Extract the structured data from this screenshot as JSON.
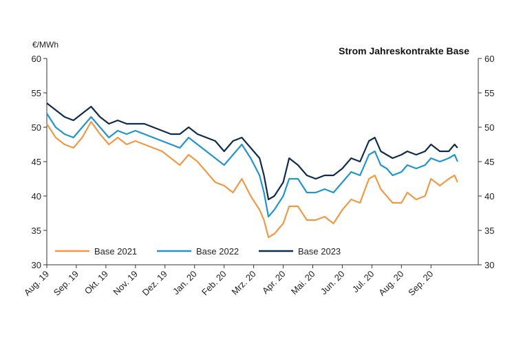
{
  "chart_data": {
    "type": "line",
    "title": "Strom Jahreskontrakte Base",
    "unit_label": "€/MWh",
    "ylim": [
      30,
      60
    ],
    "yticks": [
      30,
      35,
      40,
      45,
      50,
      55,
      60
    ],
    "xlim": [
      0,
      14.6
    ],
    "xticks": [
      {
        "x": 0,
        "label": "Aug. 19"
      },
      {
        "x": 1,
        "label": "Sep. 19"
      },
      {
        "x": 2,
        "label": "Okt. 19"
      },
      {
        "x": 3,
        "label": "Nov. 19"
      },
      {
        "x": 4,
        "label": "Dez. 19"
      },
      {
        "x": 5,
        "label": "Jan. 20"
      },
      {
        "x": 6,
        "label": "Feb. 20"
      },
      {
        "x": 7,
        "label": "Mrz. 20"
      },
      {
        "x": 8,
        "label": "Apr. 20"
      },
      {
        "x": 9,
        "label": "Mai. 20"
      },
      {
        "x": 10,
        "label": "Jun. 20"
      },
      {
        "x": 11,
        "label": "Jul. 20"
      },
      {
        "x": 12,
        "label": "Aug. 20"
      },
      {
        "x": 13,
        "label": "Sep. 20"
      }
    ],
    "grid": false,
    "legend_position": "bottom-left",
    "series": [
      {
        "name": "Base 2021",
        "color": "#f29845",
        "x": [
          0,
          0.3,
          0.6,
          0.9,
          1.2,
          1.5,
          1.8,
          2.1,
          2.4,
          2.7,
          3,
          3.3,
          3.6,
          3.9,
          4.2,
          4.5,
          4.8,
          5.1,
          5.4,
          5.7,
          6,
          6.3,
          6.6,
          6.9,
          7.2,
          7.35,
          7.5,
          7.7,
          8,
          8.2,
          8.5,
          8.8,
          9.1,
          9.4,
          9.7,
          10,
          10.3,
          10.6,
          10.9,
          11.1,
          11.3,
          11.5,
          11.7,
          12,
          12.2,
          12.5,
          12.8,
          13,
          13.3,
          13.6,
          13.8,
          13.9
        ],
        "values": [
          50.5,
          48.5,
          47.5,
          47.0,
          48.5,
          50.8,
          49.0,
          47.5,
          48.5,
          47.5,
          48.0,
          47.5,
          47.0,
          46.5,
          45.5,
          44.5,
          46.0,
          45.0,
          43.5,
          42.0,
          41.5,
          40.5,
          42.5,
          40.0,
          38.0,
          36.5,
          34.0,
          34.5,
          36.0,
          38.5,
          38.5,
          36.5,
          36.5,
          37.0,
          36.0,
          38.0,
          39.5,
          39.0,
          42.5,
          43.0,
          41.0,
          40.0,
          39.0,
          39.0,
          40.5,
          39.5,
          40.0,
          42.5,
          41.5,
          42.5,
          43.0,
          42.0
        ]
      },
      {
        "name": "Base 2022",
        "color": "#1f94cf",
        "x": [
          0,
          0.3,
          0.6,
          0.9,
          1.2,
          1.5,
          1.8,
          2.1,
          2.4,
          2.7,
          3,
          3.3,
          3.6,
          3.9,
          4.2,
          4.5,
          4.8,
          5.1,
          5.4,
          5.7,
          6,
          6.3,
          6.6,
          6.9,
          7.2,
          7.35,
          7.5,
          7.7,
          8,
          8.2,
          8.5,
          8.8,
          9.1,
          9.4,
          9.7,
          10,
          10.3,
          10.6,
          10.9,
          11.1,
          11.3,
          11.5,
          11.7,
          12,
          12.2,
          12.5,
          12.8,
          13,
          13.3,
          13.6,
          13.8,
          13.9
        ],
        "values": [
          52.0,
          50.0,
          49.0,
          48.5,
          50.0,
          51.5,
          50.0,
          48.5,
          49.5,
          49.0,
          49.5,
          49.0,
          48.5,
          48.0,
          47.5,
          47.0,
          48.5,
          47.5,
          46.5,
          45.5,
          44.5,
          46.0,
          47.5,
          45.5,
          43.0,
          40.5,
          37.0,
          38.0,
          40.0,
          42.5,
          42.5,
          40.5,
          40.5,
          41.0,
          40.5,
          42.0,
          43.5,
          43.0,
          46.0,
          46.5,
          44.5,
          44.0,
          43.0,
          43.5,
          44.5,
          44.0,
          44.5,
          45.5,
          45.0,
          45.5,
          46.0,
          45.0
        ]
      },
      {
        "name": "Base 2023",
        "color": "#0d2a4f",
        "x": [
          0,
          0.3,
          0.6,
          0.9,
          1.2,
          1.5,
          1.8,
          2.1,
          2.4,
          2.7,
          3,
          3.3,
          3.6,
          3.9,
          4.2,
          4.5,
          4.8,
          5.1,
          5.4,
          5.7,
          6,
          6.3,
          6.6,
          6.9,
          7.2,
          7.35,
          7.5,
          7.7,
          8,
          8.2,
          8.5,
          8.8,
          9.1,
          9.4,
          9.7,
          10,
          10.3,
          10.6,
          10.9,
          11.1,
          11.3,
          11.5,
          11.7,
          12,
          12.2,
          12.5,
          12.8,
          13,
          13.3,
          13.6,
          13.8,
          13.9
        ],
        "values": [
          53.5,
          52.5,
          51.5,
          51.0,
          52.0,
          53.0,
          51.5,
          50.5,
          51.0,
          50.5,
          50.5,
          50.5,
          50.0,
          49.5,
          49.0,
          49.0,
          50.0,
          49.0,
          48.5,
          48.0,
          46.5,
          48.0,
          48.5,
          47.0,
          45.5,
          43.0,
          39.5,
          40.0,
          42.0,
          45.5,
          44.5,
          43.0,
          42.5,
          43.0,
          43.0,
          44.0,
          45.5,
          45.0,
          48.0,
          48.5,
          46.5,
          46.0,
          45.5,
          46.0,
          46.5,
          46.0,
          46.5,
          47.5,
          46.5,
          46.5,
          47.5,
          47.0
        ]
      }
    ]
  }
}
